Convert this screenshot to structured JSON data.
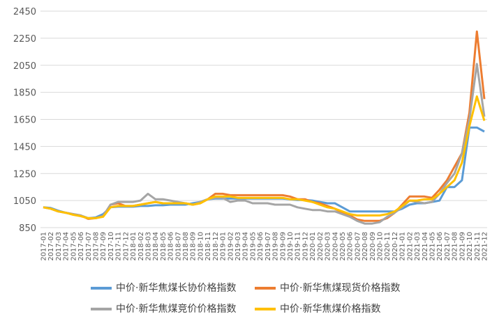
{
  "chart_data": {
    "type": "line",
    "categories": [
      "2017-01",
      "2017-02",
      "2017-03",
      "2017-04",
      "2017-05",
      "2017-06",
      "2017-07",
      "2017-08",
      "2017-09",
      "2017-10",
      "2017-11",
      "2017-12",
      "2018-01",
      "2018-02",
      "2018-03",
      "2018-04",
      "2018-05",
      "2018-06",
      "2018-07",
      "2018-08",
      "2018-09",
      "2018-10",
      "2018-11",
      "2018-12",
      "2019-01",
      "2019-02",
      "2019-03",
      "2019-04",
      "2019-05",
      "2019-06",
      "2019-07",
      "2019-08",
      "2019-09",
      "2019-10",
      "2019-11",
      "2019-12",
      "2020-01",
      "2020-02",
      "2020-03",
      "2020-04",
      "2020-05",
      "2020-06",
      "2020-07",
      "2020-08",
      "2020-09",
      "2020-10",
      "2020-11",
      "2020-12",
      "2021-01",
      "2021-02",
      "2021-03",
      "2021-04",
      "2021-05",
      "2021-06",
      "2021-07",
      "2021-08",
      "2021-09",
      "2021-10",
      "2021-11",
      "2021-12"
    ],
    "series": [
      {
        "name": "中价·新华焦煤长协价格指数",
        "color": "#5b9bd5",
        "values": [
          1000,
          995,
          975,
          960,
          950,
          940,
          920,
          925,
          950,
          1000,
          1005,
          1005,
          1005,
          1010,
          1010,
          1015,
          1015,
          1020,
          1020,
          1020,
          1030,
          1040,
          1060,
          1065,
          1065,
          1065,
          1065,
          1065,
          1065,
          1065,
          1065,
          1065,
          1065,
          1060,
          1055,
          1055,
          1050,
          1040,
          1030,
          1030,
          1000,
          970,
          970,
          970,
          970,
          970,
          970,
          970,
          990,
          1020,
          1030,
          1030,
          1040,
          1050,
          1150,
          1150,
          1200,
          1590,
          1590,
          1560
        ]
      },
      {
        "name": "中价·新华焦煤现货价格指数",
        "color": "#ed7d31",
        "values": [
          1000,
          990,
          970,
          960,
          950,
          940,
          915,
          920,
          935,
          1020,
          1030,
          1010,
          1010,
          1020,
          1030,
          1040,
          1030,
          1030,
          1030,
          1030,
          1020,
          1030,
          1060,
          1100,
          1100,
          1090,
          1090,
          1090,
          1090,
          1090,
          1090,
          1090,
          1090,
          1080,
          1060,
          1060,
          1040,
          1030,
          1010,
          990,
          960,
          940,
          910,
          900,
          900,
          900,
          920,
          960,
          1020,
          1080,
          1080,
          1080,
          1070,
          1130,
          1200,
          1300,
          1400,
          1700,
          2300,
          1800
        ]
      },
      {
        "name": "中价·新华焦煤竞价价格指数",
        "color": "#a5a5a5",
        "values": [
          1000,
          990,
          970,
          960,
          950,
          940,
          920,
          920,
          935,
          1020,
          1040,
          1040,
          1040,
          1050,
          1100,
          1060,
          1060,
          1050,
          1040,
          1030,
          1020,
          1040,
          1060,
          1070,
          1070,
          1040,
          1050,
          1050,
          1030,
          1030,
          1030,
          1020,
          1020,
          1020,
          1000,
          990,
          980,
          980,
          970,
          970,
          950,
          930,
          900,
          880,
          880,
          890,
          930,
          960,
          1000,
          1050,
          1040,
          1030,
          1040,
          1100,
          1180,
          1250,
          1400,
          1650,
          2060,
          1670
        ]
      },
      {
        "name": "中价·新华焦煤价格指数",
        "color": "#ffc000",
        "values": [
          1000,
          990,
          970,
          960,
          945,
          935,
          920,
          920,
          930,
          1000,
          1010,
          1010,
          1010,
          1020,
          1030,
          1040,
          1030,
          1030,
          1030,
          1030,
          1020,
          1030,
          1060,
          1080,
          1080,
          1080,
          1070,
          1070,
          1070,
          1070,
          1070,
          1070,
          1070,
          1060,
          1060,
          1050,
          1040,
          1020,
          1000,
          990,
          970,
          950,
          940,
          940,
          940,
          940,
          950,
          970,
          1010,
          1050,
          1050,
          1060,
          1060,
          1100,
          1150,
          1200,
          1330,
          1600,
          1820,
          1640
        ]
      }
    ],
    "ylim": [
      850,
      2450
    ],
    "yticks": [
      850,
      1050,
      1250,
      1450,
      1650,
      1850,
      2050,
      2250,
      2450
    ],
    "grid": true
  }
}
